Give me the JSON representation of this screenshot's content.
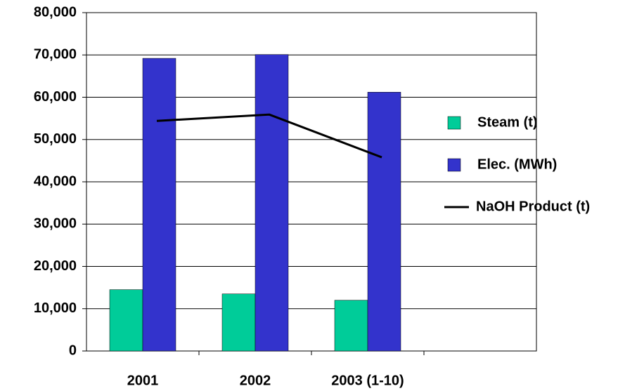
{
  "chart_data": {
    "type": "bar",
    "categories": [
      "2001",
      "2002",
      "2003 (1-10)",
      null
    ],
    "series": [
      {
        "name": "Steam (t)",
        "color": "#00cc99",
        "type": "bar",
        "values": [
          14500,
          13500,
          12000,
          null
        ]
      },
      {
        "name": "Elec. (MWh)",
        "color": "#3333cc",
        "type": "bar",
        "values": [
          69200,
          70100,
          61200,
          null
        ]
      },
      {
        "name": "NaOH Product (t)",
        "color": "#000000",
        "type": "line",
        "values": [
          54400,
          55900,
          45800,
          null
        ]
      }
    ],
    "ylim": [
      0,
      80000
    ],
    "yticks": [
      0,
      {
        "value": 10000,
        "label": "10,000"
      },
      {
        "value": 20000,
        "label": "20,000"
      },
      {
        "value": 30000,
        "label": "30,000"
      },
      {
        "value": 40000,
        "label": "40,000"
      },
      {
        "value": 50000,
        "label": "50,000"
      },
      {
        "value": 60000,
        "label": "60,000"
      },
      {
        "value": 70000,
        "label": "70,000"
      },
      {
        "value": 80000,
        "label": "80,000"
      }
    ],
    "grid": true,
    "legend": "right"
  }
}
